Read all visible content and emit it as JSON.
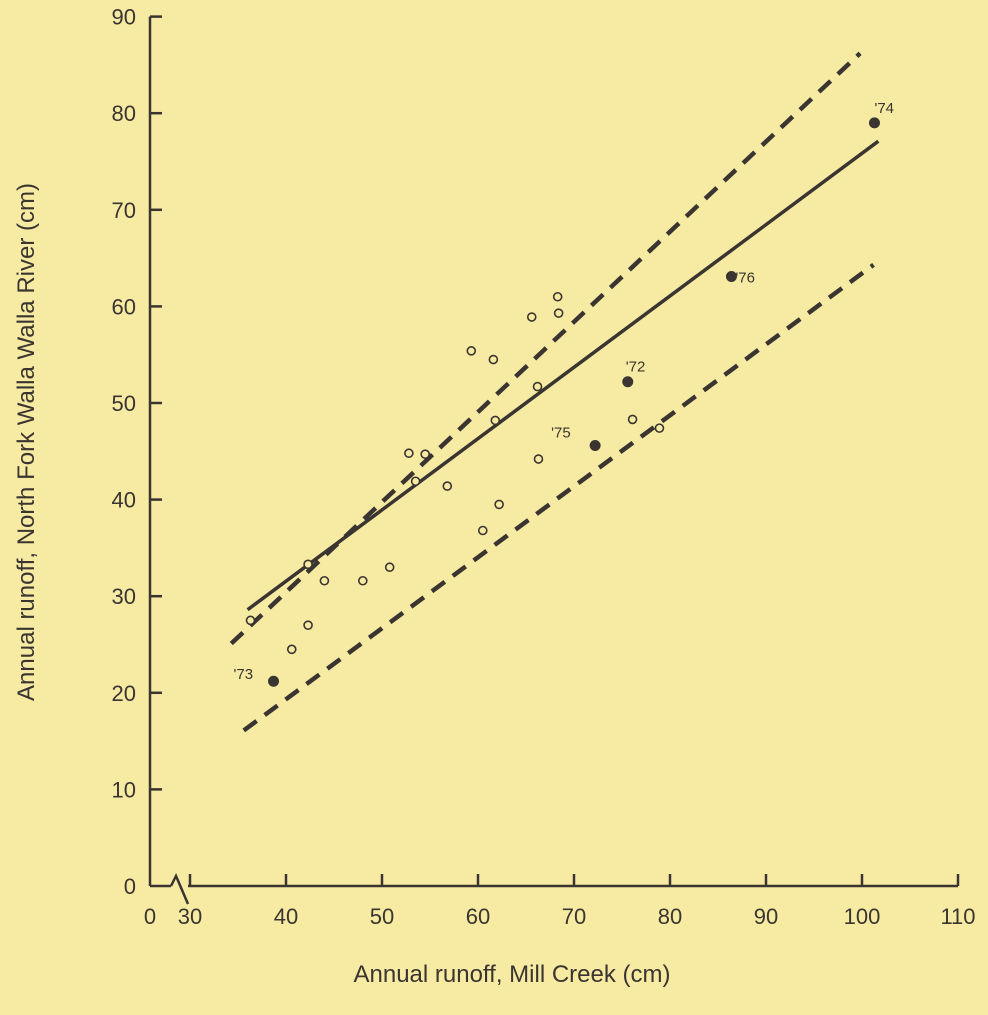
{
  "chart_data": {
    "type": "scatter",
    "title": "",
    "xlabel": "Annual runoff, Mill Creek (cm)",
    "ylabel": "Annual runoff, North Fork Walla Walla River (cm)",
    "xlim": [
      30,
      110
    ],
    "ylim": [
      0,
      90
    ],
    "x_ticks": [
      "0",
      "30",
      "40",
      "50",
      "60",
      "70",
      "80",
      "90",
      "100",
      "110"
    ],
    "y_ticks": [
      "0",
      "10",
      "20",
      "30",
      "40",
      "50",
      "60",
      "70",
      "80",
      "90"
    ],
    "x_axis_break": true,
    "grid": false,
    "colors": {
      "background": "#F7EBA3",
      "ink": "#3a3530"
    },
    "series": [
      {
        "style": "open-circle",
        "points": [
          [
            36.3,
            27.5
          ],
          [
            40.6,
            24.5
          ],
          [
            42.3,
            27.0
          ],
          [
            42.3,
            33.3
          ],
          [
            44.0,
            31.6
          ],
          [
            48.0,
            31.6
          ],
          [
            50.8,
            33.0
          ],
          [
            52.8,
            44.8
          ],
          [
            53.5,
            41.9
          ],
          [
            54.5,
            44.7
          ],
          [
            56.8,
            41.4
          ],
          [
            59.3,
            55.4
          ],
          [
            60.5,
            36.8
          ],
          [
            61.6,
            54.5
          ],
          [
            61.8,
            48.2
          ],
          [
            62.2,
            39.5
          ],
          [
            65.6,
            58.9
          ],
          [
            66.2,
            51.7
          ],
          [
            66.3,
            44.2
          ],
          [
            68.3,
            61.0
          ],
          [
            68.4,
            59.3
          ],
          [
            76.1,
            48.3
          ],
          [
            78.9,
            47.4
          ]
        ]
      },
      {
        "style": "filled-circle",
        "points": [
          {
            "x": 38.7,
            "y": 21.2,
            "label": "'73"
          },
          {
            "x": 72.2,
            "y": 45.6,
            "label": "'75"
          },
          {
            "x": 75.6,
            "y": 52.2,
            "label": "'72"
          },
          {
            "x": 86.4,
            "y": 63.1,
            "label": "'76"
          },
          {
            "x": 101.3,
            "y": 79.0,
            "label": "'74"
          }
        ]
      }
    ],
    "regression_line": {
      "x": [
        36,
        101.7
      ],
      "y": [
        28.6,
        77.1
      ]
    },
    "prediction_bands": [
      {
        "x": [
          34.3,
          99.8
        ],
        "y": [
          25.1,
          86.2
        ]
      },
      {
        "x": [
          35.6,
          101.2
        ],
        "y": [
          16.1,
          64.3
        ]
      }
    ]
  }
}
